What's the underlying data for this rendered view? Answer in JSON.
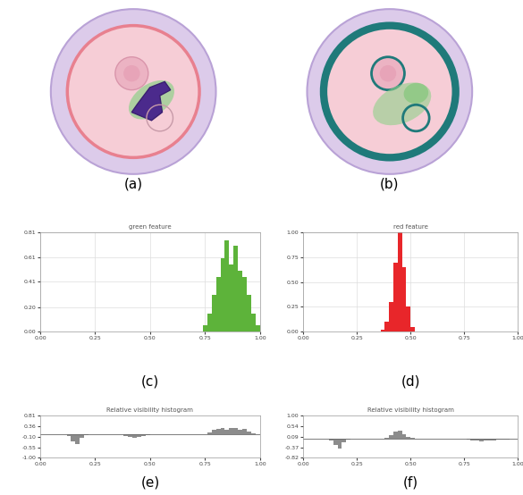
{
  "panel_labels": [
    "(a)",
    "(b)",
    "(c)",
    "(d)",
    "(e)",
    "(f)"
  ],
  "chart_data": [
    {
      "type": "histogram",
      "title": "green feature",
      "color": "#5db33a",
      "grid": true,
      "bins": [
        0.0,
        0.02,
        0.04,
        0.06,
        0.08,
        0.1,
        0.12,
        0.14,
        0.16,
        0.18,
        0.2,
        0.22,
        0.24,
        0.26,
        0.28,
        0.3,
        0.32,
        0.34,
        0.36,
        0.38,
        0.4,
        0.42,
        0.44,
        0.46,
        0.48,
        0.5,
        0.52,
        0.54,
        0.56,
        0.58,
        0.6,
        0.62,
        0.64,
        0.66,
        0.68,
        0.7,
        0.72,
        0.74,
        0.76,
        0.78,
        0.8,
        0.82,
        0.84,
        0.86,
        0.88,
        0.9,
        0.92,
        0.94,
        0.96,
        0.98,
        1.0
      ],
      "counts": [
        0,
        0,
        0,
        0,
        0,
        0,
        0,
        0,
        0,
        0,
        0,
        0,
        0,
        0,
        0,
        0,
        0,
        0,
        0,
        0,
        0,
        0,
        0,
        0,
        0,
        0,
        0,
        0,
        0,
        0,
        0,
        0,
        0,
        0,
        0,
        0,
        0,
        0.05,
        0.15,
        0.3,
        0.45,
        0.6,
        0.75,
        0.55,
        0.7,
        0.5,
        0.45,
        0.3,
        0.15,
        0.05
      ],
      "xlim": [
        0.0,
        1.0
      ],
      "ylim": [
        0.0,
        0.81
      ],
      "xticks": [
        {
          "value": 0.0,
          "label": "0.00"
        },
        {
          "value": 0.25,
          "label": "0.25"
        },
        {
          "value": 0.5,
          "label": "0.50"
        },
        {
          "value": 0.75,
          "label": "0.75"
        },
        {
          "value": 1.0,
          "label": "1.00"
        }
      ],
      "yticks": [
        {
          "value": 0.0,
          "label": "0.00"
        },
        {
          "value": 0.2,
          "label": "0.20"
        },
        {
          "value": 0.41,
          "label": "0.41"
        },
        {
          "value": 0.61,
          "label": "0.61"
        },
        {
          "value": 0.81,
          "label": "0.81"
        }
      ]
    },
    {
      "type": "histogram",
      "title": "red feature",
      "color": "#e8262a",
      "grid": true,
      "bins": [
        0.0,
        0.02,
        0.04,
        0.06,
        0.08,
        0.1,
        0.12,
        0.14,
        0.16,
        0.18,
        0.2,
        0.22,
        0.24,
        0.26,
        0.28,
        0.3,
        0.32,
        0.34,
        0.36,
        0.38,
        0.4,
        0.42,
        0.44,
        0.46,
        0.48,
        0.5,
        0.52,
        0.54,
        0.56,
        0.58,
        0.6,
        0.62,
        0.64,
        0.66,
        0.68,
        0.7,
        0.72,
        0.74,
        0.76,
        0.78,
        0.8,
        0.82,
        0.84,
        0.86,
        0.88,
        0.9,
        0.92,
        0.94,
        0.96,
        0.98,
        1.0
      ],
      "counts": [
        0,
        0,
        0,
        0,
        0,
        0,
        0,
        0,
        0,
        0,
        0,
        0,
        0,
        0,
        0,
        0,
        0,
        0,
        0.02,
        0.1,
        0.3,
        0.7,
        1.0,
        0.65,
        0.25,
        0.05,
        0,
        0,
        0,
        0,
        0,
        0,
        0,
        0,
        0,
        0,
        0,
        0,
        0,
        0,
        0,
        0,
        0,
        0,
        0,
        0,
        0,
        0,
        0,
        0
      ],
      "xlim": [
        0.0,
        1.0
      ],
      "ylim": [
        0.0,
        1.0
      ],
      "xticks": [
        {
          "value": 0.0,
          "label": "0.00"
        },
        {
          "value": 0.25,
          "label": "0.25"
        },
        {
          "value": 0.5,
          "label": "0.50"
        },
        {
          "value": 0.75,
          "label": "0.75"
        },
        {
          "value": 1.0,
          "label": "1.00"
        }
      ],
      "yticks": [
        {
          "value": 0.0,
          "label": "0.00"
        },
        {
          "value": 0.25,
          "label": "0.25"
        },
        {
          "value": 0.5,
          "label": "0.50"
        },
        {
          "value": 0.75,
          "label": "0.75"
        },
        {
          "value": 1.0,
          "label": "1.00"
        }
      ]
    },
    {
      "type": "histogram",
      "title": "Relative visibility histogram",
      "color": "#8c8c8c",
      "grid": false,
      "bins": [
        0.0,
        0.02,
        0.04,
        0.06,
        0.08,
        0.1,
        0.12,
        0.14,
        0.16,
        0.18,
        0.2,
        0.22,
        0.24,
        0.26,
        0.28,
        0.3,
        0.32,
        0.34,
        0.36,
        0.38,
        0.4,
        0.42,
        0.44,
        0.46,
        0.48,
        0.5,
        0.52,
        0.54,
        0.56,
        0.58,
        0.6,
        0.62,
        0.64,
        0.66,
        0.68,
        0.7,
        0.72,
        0.74,
        0.76,
        0.78,
        0.8,
        0.82,
        0.84,
        0.86,
        0.88,
        0.9,
        0.92,
        0.94,
        0.96,
        0.98,
        1.0
      ],
      "counts": [
        0,
        0,
        0,
        0,
        0,
        0,
        -0.05,
        -0.3,
        -0.4,
        -0.15,
        -0.03,
        0,
        0,
        0,
        0,
        0,
        0,
        0,
        0,
        -0.05,
        -0.1,
        -0.12,
        -0.1,
        -0.06,
        -0.03,
        0,
        0,
        0,
        0,
        0,
        0,
        0,
        0,
        0,
        0,
        0,
        0,
        0,
        0.1,
        0.2,
        0.25,
        0.3,
        0.22,
        0.3,
        0.28,
        0.2,
        0.25,
        0.15,
        0.05,
        0
      ],
      "xlim": [
        0.0,
        1.0
      ],
      "ylim": [
        -1.0,
        0.81
      ],
      "xticks": [
        {
          "value": 0.0,
          "label": "0.00"
        },
        {
          "value": 0.25,
          "label": "0.25"
        },
        {
          "value": 0.5,
          "label": "0.50"
        },
        {
          "value": 0.75,
          "label": "0.75"
        },
        {
          "value": 1.0,
          "label": "1.00"
        }
      ],
      "yticks": [
        {
          "value": -1.0,
          "label": "-1.00"
        },
        {
          "value": -0.55,
          "label": "-0.55"
        },
        {
          "value": -0.1,
          "label": "-0.10"
        },
        {
          "value": 0.36,
          "label": "0.36"
        },
        {
          "value": 0.81,
          "label": "0.81"
        }
      ]
    },
    {
      "type": "histogram",
      "title": "Relative visibility histogram",
      "color": "#8c8c8c",
      "grid": false,
      "bins": [
        0.0,
        0.02,
        0.04,
        0.06,
        0.08,
        0.1,
        0.12,
        0.14,
        0.16,
        0.18,
        0.2,
        0.22,
        0.24,
        0.26,
        0.28,
        0.3,
        0.32,
        0.34,
        0.36,
        0.38,
        0.4,
        0.42,
        0.44,
        0.46,
        0.48,
        0.5,
        0.52,
        0.54,
        0.56,
        0.58,
        0.6,
        0.62,
        0.64,
        0.66,
        0.68,
        0.7,
        0.72,
        0.74,
        0.76,
        0.78,
        0.8,
        0.82,
        0.84,
        0.86,
        0.88,
        0.9,
        0.92,
        0.94,
        0.96,
        0.98,
        1.0
      ],
      "counts": [
        0,
        0,
        0,
        0,
        0,
        0,
        -0.05,
        -0.28,
        -0.4,
        -0.15,
        -0.03,
        0,
        0,
        0,
        0,
        0,
        0,
        0,
        0,
        0.05,
        0.15,
        0.3,
        0.35,
        0.22,
        0.1,
        0.03,
        0,
        0,
        0,
        0,
        0,
        0,
        0,
        0,
        0,
        0,
        0,
        0,
        -0.02,
        -0.05,
        -0.08,
        -0.1,
        -0.08,
        -0.05,
        -0.06,
        -0.04,
        -0.03,
        -0.02,
        -0.01,
        0
      ],
      "xlim": [
        0.0,
        1.0
      ],
      "ylim": [
        -0.82,
        1.0
      ],
      "xticks": [
        {
          "value": 0.0,
          "label": "0.00"
        },
        {
          "value": 0.25,
          "label": "0.25"
        },
        {
          "value": 0.5,
          "label": "0.50"
        },
        {
          "value": 0.75,
          "label": "0.75"
        },
        {
          "value": 1.0,
          "label": "1.00"
        }
      ],
      "yticks": [
        {
          "value": -0.82,
          "label": "-0.82"
        },
        {
          "value": -0.37,
          "label": "-0.37"
        },
        {
          "value": 0.09,
          "label": "0.09"
        },
        {
          "value": 0.54,
          "label": "0.54"
        },
        {
          "value": 1.0,
          "label": "1.00"
        }
      ]
    }
  ]
}
